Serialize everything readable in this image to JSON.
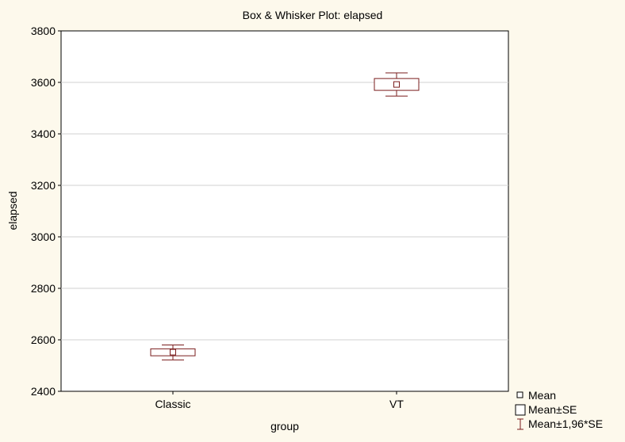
{
  "chart_data": {
    "type": "box",
    "title": "Box & Whisker Plot:  elapsed",
    "xlabel": "group",
    "ylabel": "elapsed",
    "ylim": [
      2400,
      3800
    ],
    "yticks": [
      2400,
      2600,
      2800,
      3000,
      3200,
      3400,
      3600,
      3800
    ],
    "grid": true,
    "categories": [
      "Classic",
      "VT"
    ],
    "series": [
      {
        "category": "Classic",
        "mean": 2552,
        "se_low": 2538,
        "se_high": 2565,
        "ci_low": 2522,
        "ci_high": 2580
      },
      {
        "category": "VT",
        "mean": 3592,
        "se_low": 3569,
        "se_high": 3615,
        "ci_low": 3547,
        "ci_high": 3637
      }
    ],
    "legend": {
      "position": "bottom-right",
      "entries": [
        "Mean",
        "Mean±SE",
        "Mean±1,96*SE"
      ]
    },
    "colors": {
      "marker": "#7a1c1c",
      "grid": "#d0d0d0",
      "background": "#fdf9ec",
      "plot_background": "#ffffff"
    }
  }
}
